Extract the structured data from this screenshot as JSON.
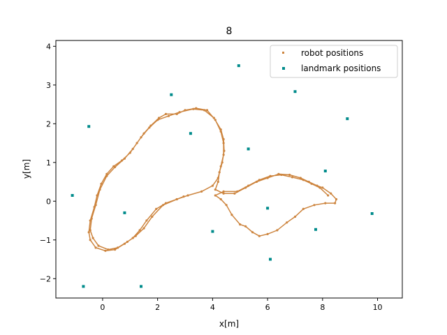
{
  "chart_data": {
    "type": "scatter",
    "title": "8",
    "xlabel": "x[m]",
    "ylabel": "y[m]",
    "xlim": [
      -1.7,
      10.9
    ],
    "ylim": [
      -2.5,
      4.15
    ],
    "xticks": [
      0,
      2,
      4,
      6,
      8,
      10
    ],
    "yticks": [
      -2,
      -1,
      0,
      1,
      2,
      3,
      4
    ],
    "grid": false,
    "legend_position": "upper-right",
    "colors": {
      "robot": "#cd853f",
      "landmark": "#008b8b"
    },
    "series": [
      {
        "name": "robot positions",
        "marker": "dot",
        "path": [
          [
            2.95,
            0.12
          ],
          [
            2.7,
            0.05
          ],
          [
            2.3,
            -0.05
          ],
          [
            1.95,
            -0.2
          ],
          [
            1.6,
            -0.5
          ],
          [
            1.35,
            -0.75
          ],
          [
            1.1,
            -0.95
          ],
          [
            0.8,
            -1.1
          ],
          [
            0.45,
            -1.25
          ],
          [
            0.1,
            -1.28
          ],
          [
            -0.25,
            -1.2
          ],
          [
            -0.45,
            -1.0
          ],
          [
            -0.5,
            -0.8
          ],
          [
            -0.45,
            -0.5
          ],
          [
            -0.3,
            -0.15
          ],
          [
            -0.2,
            0.15
          ],
          [
            -0.05,
            0.45
          ],
          [
            0.15,
            0.7
          ],
          [
            0.4,
            0.9
          ],
          [
            0.7,
            1.05
          ],
          [
            1.0,
            1.25
          ],
          [
            1.25,
            1.5
          ],
          [
            1.5,
            1.75
          ],
          [
            1.75,
            1.95
          ],
          [
            2.05,
            2.15
          ],
          [
            2.3,
            2.25
          ],
          [
            2.7,
            2.25
          ],
          [
            3.0,
            2.35
          ],
          [
            3.4,
            2.4
          ],
          [
            3.8,
            2.35
          ],
          [
            4.1,
            2.1
          ],
          [
            4.3,
            1.8
          ],
          [
            4.4,
            1.5
          ],
          [
            4.4,
            1.2
          ],
          [
            4.3,
            0.9
          ],
          [
            4.2,
            0.6
          ],
          [
            4.0,
            0.4
          ],
          [
            3.6,
            0.25
          ],
          [
            3.1,
            0.15
          ],
          [
            2.7,
            0.05
          ],
          [
            2.2,
            -0.1
          ],
          [
            1.8,
            -0.4
          ],
          [
            1.5,
            -0.7
          ],
          [
            1.2,
            -0.9
          ],
          [
            0.9,
            -1.05
          ],
          [
            0.55,
            -1.2
          ],
          [
            0.2,
            -1.25
          ],
          [
            -0.15,
            -1.15
          ],
          [
            -0.35,
            -0.95
          ],
          [
            -0.45,
            -0.75
          ],
          [
            -0.4,
            -0.45
          ],
          [
            -0.25,
            -0.1
          ],
          [
            -0.1,
            0.3
          ],
          [
            0.15,
            0.65
          ],
          [
            0.45,
            0.88
          ],
          [
            0.8,
            1.1
          ],
          [
            1.1,
            1.35
          ],
          [
            1.4,
            1.65
          ],
          [
            1.7,
            1.9
          ],
          [
            2.0,
            2.1
          ],
          [
            2.4,
            2.2
          ],
          [
            2.8,
            2.3
          ],
          [
            3.3,
            2.38
          ],
          [
            3.7,
            2.35
          ],
          [
            4.05,
            2.15
          ],
          [
            4.3,
            1.85
          ],
          [
            4.4,
            1.6
          ],
          [
            4.42,
            1.3
          ],
          [
            4.35,
            1.0
          ],
          [
            4.25,
            0.75
          ],
          [
            4.2,
            0.5
          ],
          [
            4.1,
            0.3
          ],
          [
            4.4,
            0.2
          ],
          [
            4.8,
            0.2
          ],
          [
            5.2,
            0.35
          ],
          [
            5.6,
            0.5
          ],
          [
            6.0,
            0.6
          ],
          [
            6.4,
            0.7
          ],
          [
            6.8,
            0.68
          ],
          [
            7.2,
            0.6
          ],
          [
            7.5,
            0.5
          ],
          [
            7.8,
            0.4
          ],
          [
            8.0,
            0.35
          ],
          [
            8.3,
            0.2
          ],
          [
            8.5,
            0.05
          ],
          [
            8.45,
            -0.05
          ],
          [
            8.1,
            -0.05
          ],
          [
            7.7,
            -0.1
          ],
          [
            7.3,
            -0.2
          ],
          [
            7.0,
            -0.4
          ],
          [
            6.7,
            -0.55
          ],
          [
            6.35,
            -0.75
          ],
          [
            6.0,
            -0.85
          ],
          [
            5.7,
            -0.9
          ],
          [
            5.45,
            -0.8
          ],
          [
            5.2,
            -0.65
          ],
          [
            5.0,
            -0.6
          ],
          [
            4.7,
            -0.35
          ],
          [
            4.5,
            -0.1
          ],
          [
            4.3,
            0.05
          ],
          [
            4.1,
            0.15
          ],
          [
            4.4,
            0.25
          ],
          [
            4.9,
            0.25
          ],
          [
            5.3,
            0.4
          ],
          [
            5.7,
            0.55
          ],
          [
            6.1,
            0.65
          ],
          [
            6.5,
            0.68
          ],
          [
            6.9,
            0.62
          ],
          [
            7.3,
            0.55
          ],
          [
            7.6,
            0.45
          ],
          [
            7.9,
            0.35
          ],
          [
            8.2,
            0.15
          ]
        ]
      },
      {
        "name": "landmark positions",
        "marker": "square",
        "points": [
          [
            -1.1,
            0.15
          ],
          [
            -0.5,
            1.93
          ],
          [
            0.8,
            -0.3
          ],
          [
            -0.7,
            -2.2
          ],
          [
            1.4,
            -2.2
          ],
          [
            2.5,
            2.75
          ],
          [
            3.2,
            1.75
          ],
          [
            4.0,
            -0.78
          ],
          [
            4.95,
            3.5
          ],
          [
            5.3,
            1.35
          ],
          [
            6.0,
            -0.18
          ],
          [
            6.1,
            -1.5
          ],
          [
            7.0,
            2.83
          ],
          [
            7.75,
            -0.73
          ],
          [
            8.1,
            0.78
          ],
          [
            8.9,
            2.13
          ],
          [
            9.8,
            -0.32
          ]
        ]
      }
    ]
  }
}
